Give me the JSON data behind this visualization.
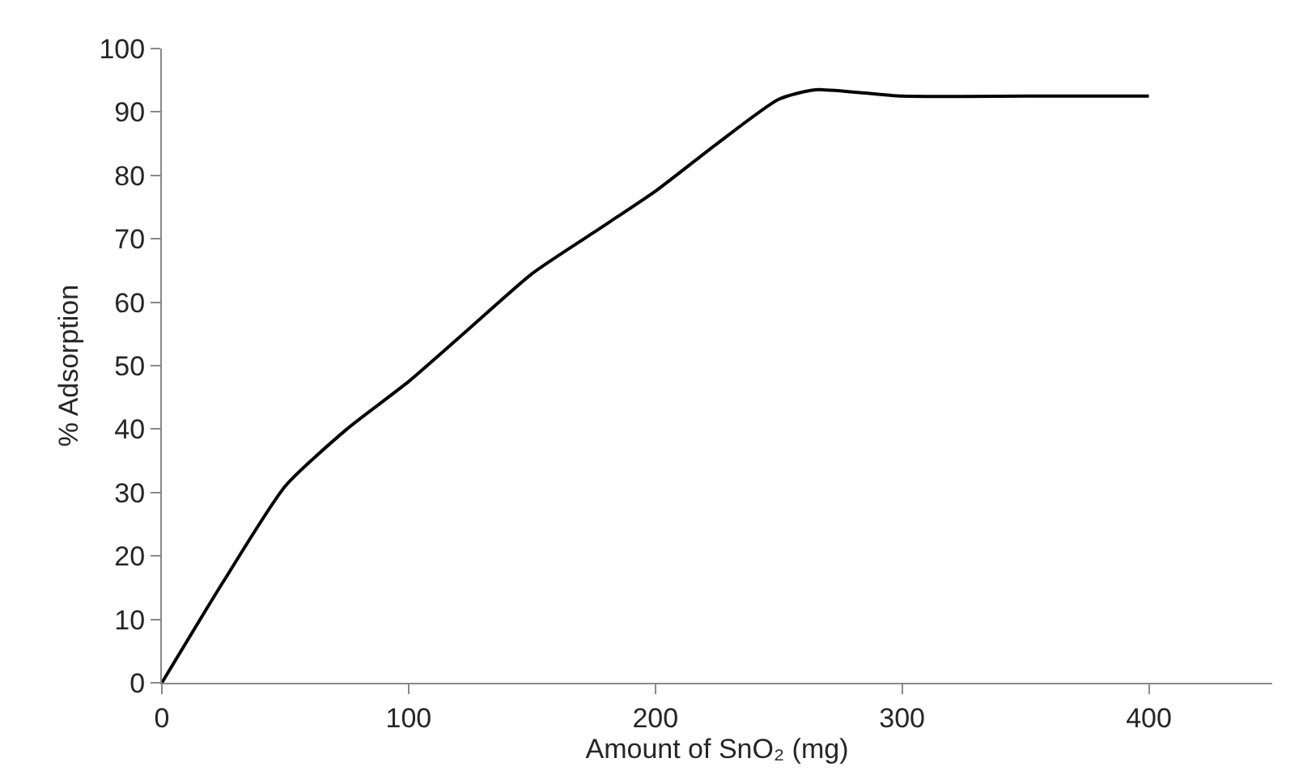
{
  "chart_data": {
    "type": "line",
    "xlabel": "Amount of SnO₂ (mg)",
    "ylabel": "% Adsorption",
    "x": [
      0,
      25,
      50,
      75,
      100,
      125,
      150,
      175,
      200,
      225,
      250,
      265,
      300,
      350,
      400
    ],
    "series": [
      {
        "color": "#000000",
        "values": [
          0,
          16,
          31,
          40,
          47.5,
          56,
          64.5,
          71,
          77.5,
          85,
          92,
          93.5,
          92.5,
          92.5,
          92.5
        ]
      }
    ],
    "xlim": [
      0,
      450
    ],
    "xticks": [
      0,
      100,
      200,
      300,
      400
    ],
    "ylim": [
      0,
      100
    ],
    "yticks": [
      0,
      10,
      20,
      30,
      40,
      50,
      60,
      70,
      80,
      90,
      100
    ],
    "marker": "none",
    "line_style": "solid"
  }
}
